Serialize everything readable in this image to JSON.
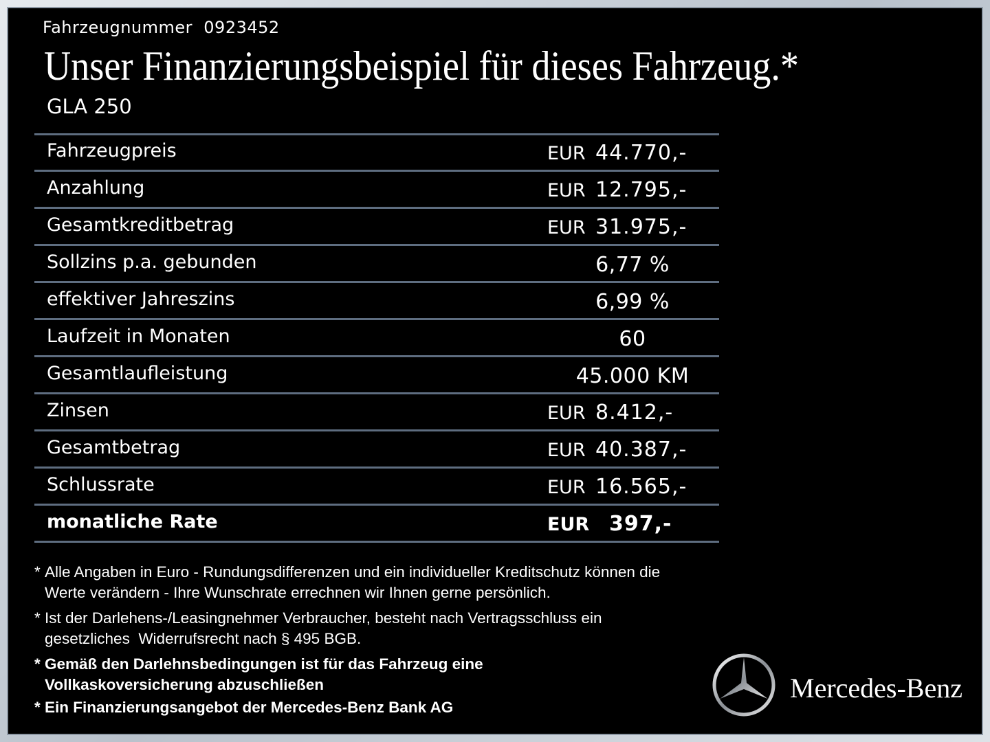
{
  "header": {
    "vehicle_number_label": "Fahrzeugnummer",
    "vehicle_number": "0923452",
    "title": "Unser Finanzierungsbeispiel für dieses Fahrzeug.*",
    "model": "GLA 250"
  },
  "table": {
    "rows": [
      {
        "label": "Fahrzeugpreis",
        "currency": "EUR",
        "amount": "44.770,-"
      },
      {
        "label": "Anzahlung",
        "currency": "EUR",
        "amount": "12.795,-"
      },
      {
        "label": "Gesamtkreditbetrag",
        "currency": "EUR",
        "amount": "31.975,-"
      },
      {
        "label": "Sollzins p.a. gebunden",
        "value": "6,77 %"
      },
      {
        "label": "effektiver Jahreszins",
        "value": "6,99 %"
      },
      {
        "label": "Laufzeit in Monaten",
        "value": "60"
      },
      {
        "label": "Gesamtlaufleistung",
        "value": "45.000 KM"
      },
      {
        "label": "Zinsen",
        "currency": "EUR",
        "amount": "8.412,-"
      },
      {
        "label": "Gesamtbetrag",
        "currency": "EUR",
        "amount": "40.387,-"
      },
      {
        "label": "Schlussrate",
        "currency": "EUR",
        "amount": "16.565,-"
      },
      {
        "label": "monatliche Rate",
        "currency": "EUR",
        "amount": "397,-",
        "bold": true
      }
    ]
  },
  "footnotes": [
    {
      "marker": "*",
      "lines": [
        "Alle Angaben in Euro - Rundungsdifferenzen und ein individueller Kreditschutz können die",
        "Werte verändern - Ihre Wunschrate errechnen wir Ihnen gerne persönlich."
      ]
    },
    {
      "marker": "*",
      "lines": [
        "Ist der Darlehens-/Leasingnehmer Verbraucher, besteht nach Vertragsschluss ein",
        "gesetzliches  Widerrufsrecht nach § 495 BGB."
      ]
    },
    {
      "marker": "*",
      "lines": [
        "Gemäß den Darlehnsbedingungen ist für das Fahrzeug eine",
        "Vollkaskoversicherung abzuschließen"
      ],
      "bold": true
    },
    {
      "marker": "*",
      "lines": [
        "Ein Finanzierungsangebot der Mercedes-Benz Bank AG"
      ],
      "bold": true
    }
  ],
  "brand": {
    "name": "Mercedes-Benz"
  }
}
